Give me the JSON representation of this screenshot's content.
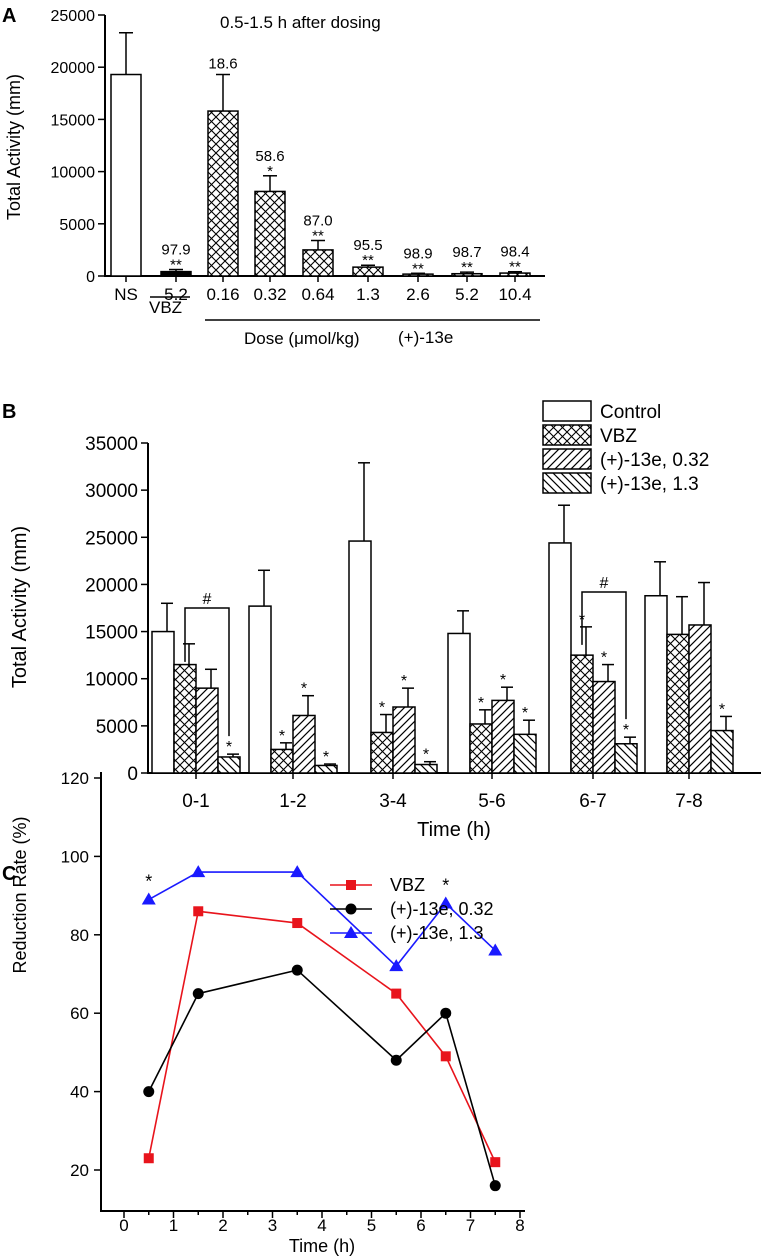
{
  "chart_data": [
    {
      "panel": "A",
      "type": "bar",
      "title": "0.5-1.5 h after dosing",
      "ylabel": "Total Activity (mm)",
      "ylim": [
        0,
        25000
      ],
      "yticks": [
        0,
        5000,
        10000,
        15000,
        20000,
        25000
      ],
      "categories": [
        "NS",
        "5.2",
        "0.16",
        "0.32",
        "0.64",
        "1.3",
        "2.6",
        "5.2",
        "10.4"
      ],
      "patterns": [
        "none",
        "solid",
        "crosshatch",
        "crosshatch",
        "crosshatch",
        "crosshatch",
        "crosshatch",
        "crosshatch",
        "crosshatch"
      ],
      "values": [
        19300,
        420,
        15800,
        8100,
        2500,
        850,
        180,
        220,
        280
      ],
      "errors": [
        4000,
        200,
        3500,
        1500,
        900,
        180,
        80,
        150,
        130
      ],
      "reduction_labels": [
        "",
        "97.9",
        "18.6",
        "58.6",
        "87.0",
        "95.5",
        "98.9",
        "98.7",
        "98.4"
      ],
      "significance": [
        "",
        "**",
        "",
        "*",
        "**",
        "**",
        "**",
        "**",
        "**"
      ],
      "group_labels": {
        "vbz": "VBZ",
        "dose": "Dose (μmol/kg)",
        "compound": "(+)-13e"
      }
    },
    {
      "panel": "B",
      "type": "bar",
      "xlabel": "Time (h)",
      "ylabel": "Total Activity (mm)",
      "ylim": [
        0,
        35000
      ],
      "yticks": [
        0,
        5000,
        10000,
        15000,
        20000,
        25000,
        30000,
        35000
      ],
      "categories": [
        "0-1",
        "1-2",
        "3-4",
        "5-6",
        "6-7",
        "7-8"
      ],
      "series": [
        {
          "name": "Control",
          "pattern": "none",
          "values": [
            15000,
            17700,
            24600,
            14800,
            24400,
            18800
          ],
          "errors": [
            3000,
            3800,
            8300,
            2400,
            4000,
            3600
          ],
          "significance": [
            "",
            "",
            "",
            "",
            "",
            ""
          ]
        },
        {
          "name": "VBZ",
          "pattern": "crosshatch",
          "values": [
            11500,
            2500,
            4300,
            5200,
            12500,
            14700
          ],
          "errors": [
            2200,
            700,
            1900,
            1500,
            3000,
            4000
          ],
          "significance": [
            "",
            "*",
            "*",
            "*",
            "*",
            ""
          ]
        },
        {
          "name": "(+)-13e, 0.32",
          "pattern": "diag-right",
          "values": [
            9000,
            6100,
            7000,
            7700,
            9700,
            15700
          ],
          "errors": [
            2000,
            2100,
            2000,
            1400,
            1800,
            4500
          ],
          "significance": [
            "",
            "*",
            "*",
            "*",
            "*",
            ""
          ]
        },
        {
          "name": "(+)-13e, 1.3",
          "pattern": "diag-left",
          "values": [
            1700,
            800,
            900,
            4100,
            3100,
            4500
          ],
          "errors": [
            300,
            150,
            300,
            1500,
            700,
            1500
          ],
          "significance": [
            "*",
            "*",
            "*",
            "*",
            "*",
            "*"
          ]
        }
      ],
      "brackets": [
        {
          "label": "#",
          "category_index": 0
        },
        {
          "label": "#",
          "category_index": 4
        }
      ],
      "legend_position": "top-right"
    },
    {
      "panel": "C",
      "type": "line",
      "xlabel": "Time (h)",
      "ylabel": "Reduction Rate (%)",
      "xlim": [
        0,
        8
      ],
      "ylim": [
        15,
        120
      ],
      "xticks": [
        0,
        1,
        2,
        3,
        4,
        5,
        6,
        7,
        8
      ],
      "yticks": [
        20,
        40,
        60,
        80,
        100,
        120
      ],
      "series": [
        {
          "name": "VBZ",
          "color": "#e8141c",
          "marker": "square",
          "x": [
            0.5,
            1.5,
            3.5,
            5.5,
            6.5,
            7.5
          ],
          "y": [
            23,
            86,
            83,
            65,
            49,
            22
          ]
        },
        {
          "name": "(+)-13e, 0.32",
          "color": "#000000",
          "marker": "circle",
          "x": [
            0.5,
            1.5,
            3.5,
            5.5,
            6.5,
            7.5
          ],
          "y": [
            40,
            65,
            71,
            48,
            60,
            16
          ]
        },
        {
          "name": "(+)-13e, 1.3",
          "color": "#1a1aff",
          "marker": "triangle",
          "x": [
            0.5,
            1.5,
            3.5,
            5.5,
            6.5,
            7.5
          ],
          "y": [
            89,
            96,
            96,
            72,
            88,
            76
          ]
        }
      ],
      "annotations": [
        {
          "text": "*",
          "x": 0.5,
          "y": 89
        },
        {
          "text": "*",
          "x": 6.5,
          "y": 88
        }
      ],
      "legend_position": "top-right"
    }
  ],
  "panel_labels": [
    "A",
    "B",
    "C"
  ]
}
